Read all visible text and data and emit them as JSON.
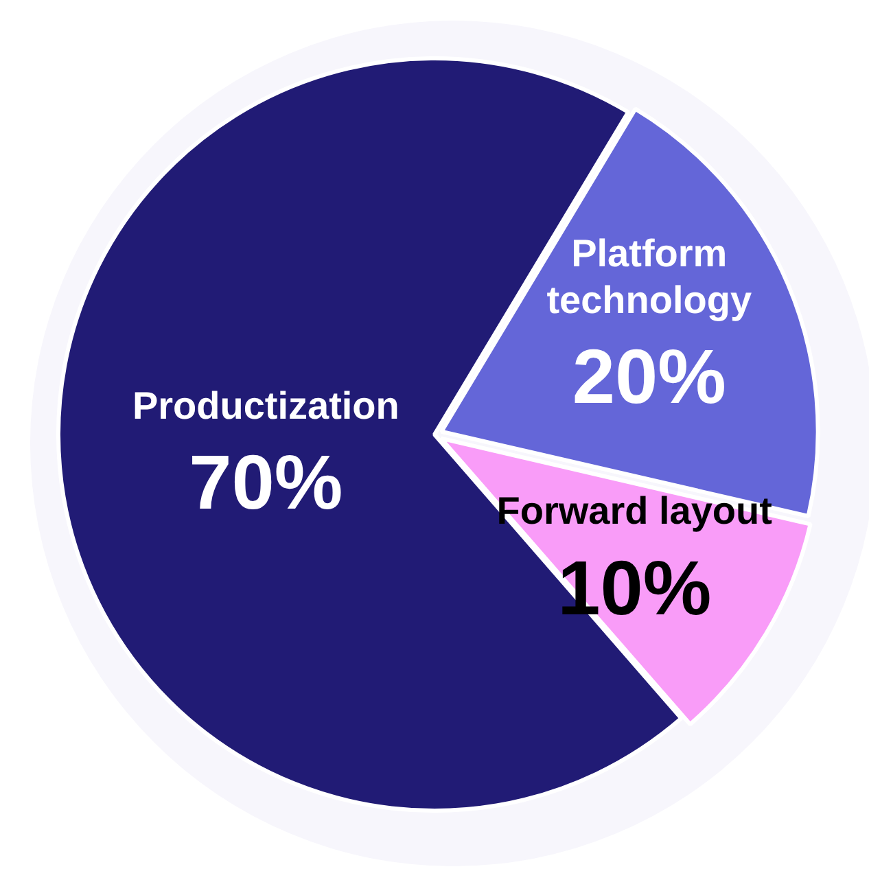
{
  "chart_data": {
    "type": "pie",
    "categories": [
      "Productization",
      "Platform technology",
      "Forward layout"
    ],
    "values": [
      70,
      20,
      10
    ],
    "colors": [
      "#211b75",
      "#6466d8",
      "#f99cf8"
    ],
    "value_labels": [
      "70%",
      "20%",
      "10%"
    ],
    "legend": false
  }
}
